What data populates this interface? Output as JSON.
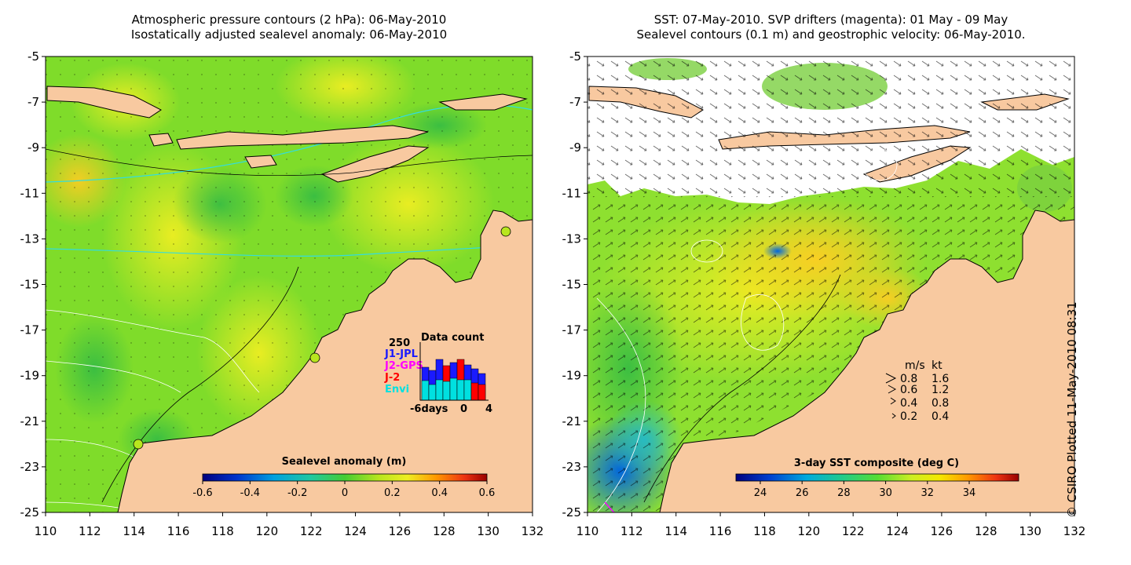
{
  "left_panel": {
    "title_line1": "Atmospheric pressure contours (2 hPa): 06-May-2010",
    "title_line2": "Isostatically adjusted sealevel anomaly: 06-May-2010",
    "colorbar_title": "Sealevel anomaly (m)",
    "colorbar_ticks": [
      "-0.6",
      "-0.4",
      "-0.2",
      "0",
      "0.2",
      "0.4",
      "0.6"
    ],
    "data_count": {
      "title": "Data count",
      "max_label": "250",
      "series": [
        {
          "name": "J1-JPL",
          "color": "#1a1aff"
        },
        {
          "name": "J2-GPS",
          "color": "#ff00ff"
        },
        {
          "name": "J-2",
          "color": "#ff0000"
        },
        {
          "name": "Envi",
          "color": "#00e0e0"
        }
      ],
      "x_labels": [
        "-6days",
        "0",
        "4"
      ]
    }
  },
  "right_panel": {
    "title_line1": "SST: 07-May-2010. SVP drifters (magenta): 01 May - 09 May",
    "title_line2": "Sealevel contours (0.1 m) and geostrophic velocity: 06-May-2010.",
    "colorbar_title": "3-day SST composite (deg C)",
    "colorbar_ticks": [
      "24",
      "26",
      "28",
      "30",
      "32",
      "34"
    ],
    "velocity_legend": {
      "header_ms": "m/s",
      "header_kt": "kt",
      "rows": [
        {
          "ms": "0.8",
          "kt": "1.6"
        },
        {
          "ms": "0.6",
          "kt": "1.2"
        },
        {
          "ms": "0.4",
          "kt": "0.8"
        },
        {
          "ms": "0.2",
          "kt": "0.4"
        }
      ]
    }
  },
  "axes": {
    "x_ticks": [
      "110",
      "112",
      "114",
      "116",
      "118",
      "120",
      "122",
      "124",
      "126",
      "128",
      "130",
      "132"
    ],
    "y_ticks": [
      "-5",
      "-7",
      "-9",
      "-11",
      "-13",
      "-15",
      "-17",
      "-19",
      "-21",
      "-23",
      "-25"
    ]
  },
  "credit": "© CSIRO Plotted 11-May-2010 08:31",
  "colors": {
    "land": "#f8c9a0",
    "sea_green": "#66d633",
    "sea_yellow": "#d6ee22",
    "pressure_contour": "#33dddd"
  }
}
